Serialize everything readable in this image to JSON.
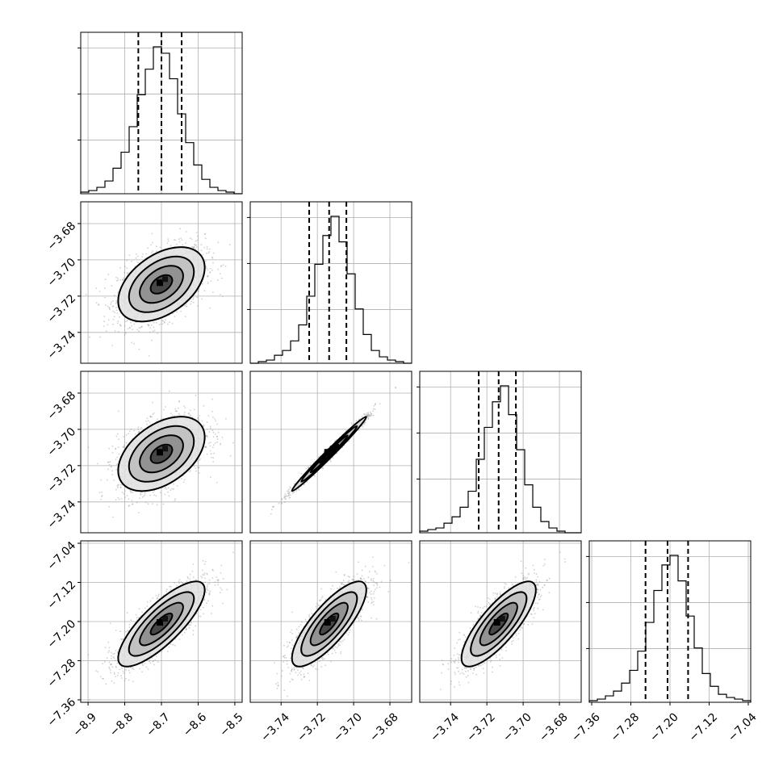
{
  "chart_data": {
    "type": "corner",
    "parameters": 4,
    "grid": true,
    "axes": [
      {
        "ticks": [
          "−8.9",
          "−8.8",
          "−8.7",
          "−8.6",
          "−8.5"
        ],
        "range": [
          -8.92,
          -8.48
        ],
        "median": -8.7,
        "quantiles": [
          -8.763,
          -8.645
        ]
      },
      {
        "ticks": [
          "−3.74",
          "−3.72",
          "−3.70",
          "−3.68"
        ],
        "range": [
          -3.757,
          -3.668
        ],
        "median": -3.7135,
        "quantiles": [
          -3.7245,
          -3.704
        ]
      },
      {
        "ticks": [
          "−3.74",
          "−3.72",
          "−3.70",
          "−3.68"
        ],
        "range": [
          -3.757,
          -3.668
        ],
        "median": -3.7135,
        "quantiles": [
          -3.7245,
          -3.704
        ]
      },
      {
        "ticks": [
          "−7.36",
          "−7.28",
          "−7.20",
          "−7.12",
          "−7.04"
        ],
        "range": [
          -7.365,
          -7.035
        ],
        "median": -7.205,
        "quantiles": [
          -7.25,
          -7.163
        ]
      }
    ],
    "tick_values": [
      [
        -8.9,
        -8.8,
        -8.7,
        -8.6,
        -8.5
      ],
      [
        -3.74,
        -3.72,
        -3.7,
        -3.68
      ],
      [
        -3.74,
        -3.72,
        -3.7,
        -3.68
      ],
      [
        -7.36,
        -7.28,
        -7.2,
        -7.12,
        -7.04
      ]
    ],
    "histograms": [
      [
        1,
        2,
        4,
        8,
        16,
        26,
        42,
        62,
        78,
        92,
        88,
        72,
        50,
        32,
        18,
        9,
        4,
        2,
        1,
        0
      ],
      [
        0,
        1,
        2,
        5,
        8,
        14,
        24,
        42,
        62,
        80,
        92,
        76,
        56,
        34,
        18,
        8,
        4,
        2,
        1,
        0
      ],
      [
        1,
        2,
        3,
        6,
        10,
        16,
        26,
        46,
        66,
        82,
        92,
        74,
        52,
        30,
        16,
        7,
        3,
        1,
        0,
        0
      ],
      [
        1,
        2,
        4,
        7,
        12,
        20,
        32,
        50,
        70,
        86,
        92,
        76,
        54,
        34,
        18,
        10,
        5,
        3,
        2,
        1
      ]
    ],
    "correlations": {
      "1,0": 0.45,
      "2,0": 0.45,
      "2,1": 0.99,
      "3,0": 0.8,
      "3,1": 0.8,
      "3,2": 0.8
    }
  }
}
